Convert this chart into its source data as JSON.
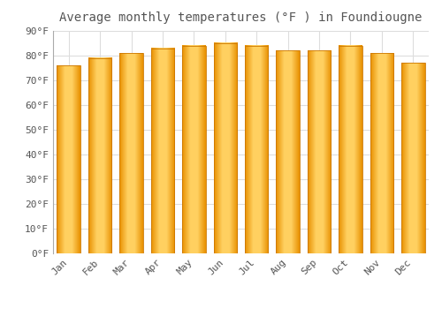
{
  "title": "Average monthly temperatures (°F ) in Foundiougne",
  "months": [
    "Jan",
    "Feb",
    "Mar",
    "Apr",
    "May",
    "Jun",
    "Jul",
    "Aug",
    "Sep",
    "Oct",
    "Nov",
    "Dec"
  ],
  "values": [
    76,
    79,
    81,
    83,
    84,
    85,
    84,
    82,
    82,
    84,
    81,
    77
  ],
  "bar_color_main": "#FFA500",
  "bar_color_light": "#FFD966",
  "bar_edge_color": "#E08000",
  "background_color": "#FFFFFF",
  "plot_bg_color": "#FFFFFF",
  "grid_color": "#DDDDDD",
  "ylim": [
    0,
    90
  ],
  "yticks": [
    0,
    10,
    20,
    30,
    40,
    50,
    60,
    70,
    80,
    90
  ],
  "ytick_labels": [
    "0°F",
    "10°F",
    "20°F",
    "30°F",
    "40°F",
    "50°F",
    "60°F",
    "70°F",
    "80°F",
    "90°F"
  ],
  "title_fontsize": 10,
  "tick_fontsize": 8,
  "font_color": "#555555"
}
